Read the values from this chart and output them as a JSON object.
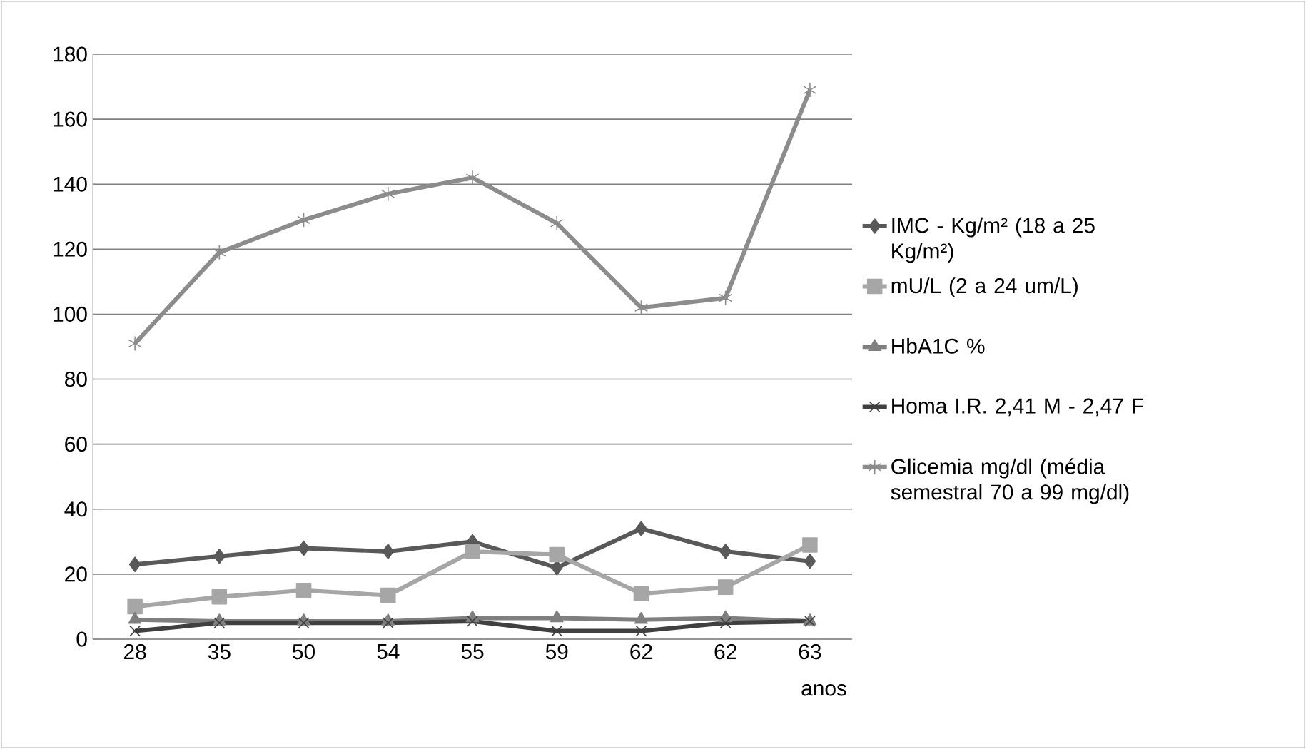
{
  "chart_data": {
    "type": "line",
    "xlabel": "anos",
    "categories": [
      "28",
      "35",
      "50",
      "54",
      "55",
      "59",
      "62",
      "62",
      "63"
    ],
    "series": [
      {
        "name": "IMC - Kg/m² (18 a 25 Kg/m²)",
        "color": "#595959",
        "marker": "diamond",
        "values": [
          23,
          25.5,
          28,
          27,
          30,
          22,
          34,
          27,
          24
        ]
      },
      {
        "name": "mU/L (2 a 24 um/L)",
        "color": "#a6a6a6",
        "marker": "square",
        "values": [
          10,
          13,
          15,
          13.5,
          27,
          26,
          14,
          16,
          29
        ]
      },
      {
        "name": "HbA1C %",
        "color": "#7f7f7f",
        "marker": "triangle",
        "values": [
          6,
          5.5,
          5.5,
          5.5,
          6.5,
          6.5,
          6,
          6.5,
          5.5
        ]
      },
      {
        "name": "Homa I.R. 2,41 M - 2,47 F",
        "color": "#404040",
        "marker": "cross",
        "values": [
          2.5,
          5,
          5,
          5,
          5.5,
          2.5,
          2.5,
          5,
          5.5
        ]
      },
      {
        "name": "Glicemia mg/dl (média semestral 70 a 99 mg/dl)",
        "color": "#8c8c8c",
        "marker": "cross",
        "values": [
          91,
          119,
          129,
          137,
          142,
          128,
          102,
          105,
          169
        ]
      }
    ],
    "ylim": [
      0,
      180
    ],
    "yticks": [
      0,
      20,
      40,
      60,
      80,
      100,
      120,
      140,
      160,
      180
    ],
    "grid": "y",
    "legend": "right",
    "line_style": "solid"
  }
}
